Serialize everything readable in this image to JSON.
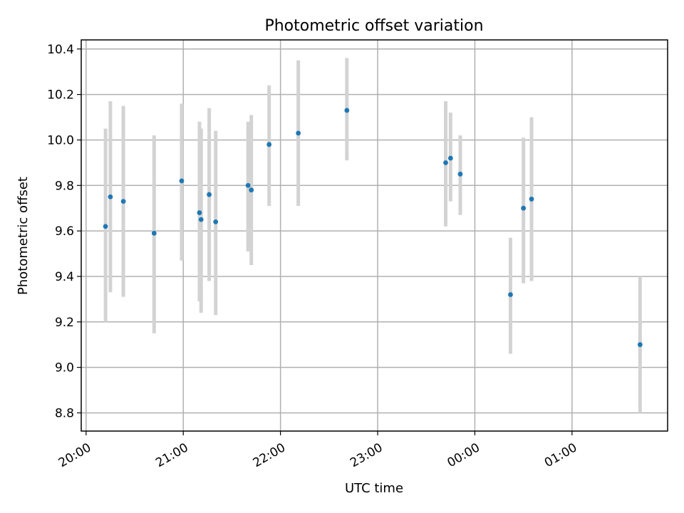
{
  "chart_data": {
    "type": "scatter",
    "title": "Photometric offset variation",
    "xlabel": "UTC time",
    "ylabel": "Photometric offset",
    "xlim": [
      "19:57",
      "25:59"
    ],
    "ylim": [
      8.72,
      10.44
    ],
    "x_tick_labels": [
      "20:00",
      "21:00",
      "22:00",
      "23:00",
      "00:00",
      "01:00"
    ],
    "y_ticks": [
      8.8,
      9.0,
      9.2,
      9.4,
      9.6,
      9.8,
      10.0,
      10.2,
      10.4
    ],
    "y_tick_labels": [
      "8.8",
      "9.0",
      "9.2",
      "9.4",
      "9.6",
      "9.8",
      "10.0",
      "10.2",
      "10.4"
    ],
    "grid": true,
    "colors": {
      "point": "#1f77b4",
      "error_bar": "#d3d3d3",
      "grid": "#b0b0b0"
    },
    "points": [
      {
        "x": "20:12",
        "y": 9.62,
        "ylow": 9.2,
        "yhigh": 10.05
      },
      {
        "x": "20:15",
        "y": 9.75,
        "ylow": 9.33,
        "yhigh": 10.17
      },
      {
        "x": "20:23",
        "y": 9.73,
        "ylow": 9.31,
        "yhigh": 10.15
      },
      {
        "x": "20:42",
        "y": 9.59,
        "ylow": 9.15,
        "yhigh": 10.02
      },
      {
        "x": "20:59",
        "y": 9.82,
        "ylow": 9.47,
        "yhigh": 10.16
      },
      {
        "x": "21:10",
        "y": 9.68,
        "ylow": 9.29,
        "yhigh": 10.08
      },
      {
        "x": "21:11",
        "y": 9.65,
        "ylow": 9.24,
        "yhigh": 10.05
      },
      {
        "x": "21:16",
        "y": 9.76,
        "ylow": 9.38,
        "yhigh": 10.14
      },
      {
        "x": "21:20",
        "y": 9.64,
        "ylow": 9.23,
        "yhigh": 10.04
      },
      {
        "x": "21:40",
        "y": 9.8,
        "ylow": 9.51,
        "yhigh": 10.08
      },
      {
        "x": "21:42",
        "y": 9.78,
        "ylow": 9.45,
        "yhigh": 10.11
      },
      {
        "x": "21:53",
        "y": 9.98,
        "ylow": 9.71,
        "yhigh": 10.24
      },
      {
        "x": "22:11",
        "y": 10.03,
        "ylow": 9.71,
        "yhigh": 10.35
      },
      {
        "x": "22:41",
        "y": 10.13,
        "ylow": 9.91,
        "yhigh": 10.36
      },
      {
        "x": "23:42",
        "y": 9.9,
        "ylow": 9.62,
        "yhigh": 10.17
      },
      {
        "x": "23:45",
        "y": 9.92,
        "ylow": 9.73,
        "yhigh": 10.12
      },
      {
        "x": "23:51",
        "y": 9.85,
        "ylow": 9.67,
        "yhigh": 10.02
      },
      {
        "x": "00:22",
        "y": 9.32,
        "ylow": 9.06,
        "yhigh": 9.57
      },
      {
        "x": "00:30",
        "y": 9.7,
        "ylow": 9.37,
        "yhigh": 10.01
      },
      {
        "x": "00:35",
        "y": 9.74,
        "ylow": 9.38,
        "yhigh": 10.1
      },
      {
        "x": "01:42",
        "y": 9.1,
        "ylow": 8.8,
        "yhigh": 9.4
      }
    ]
  }
}
